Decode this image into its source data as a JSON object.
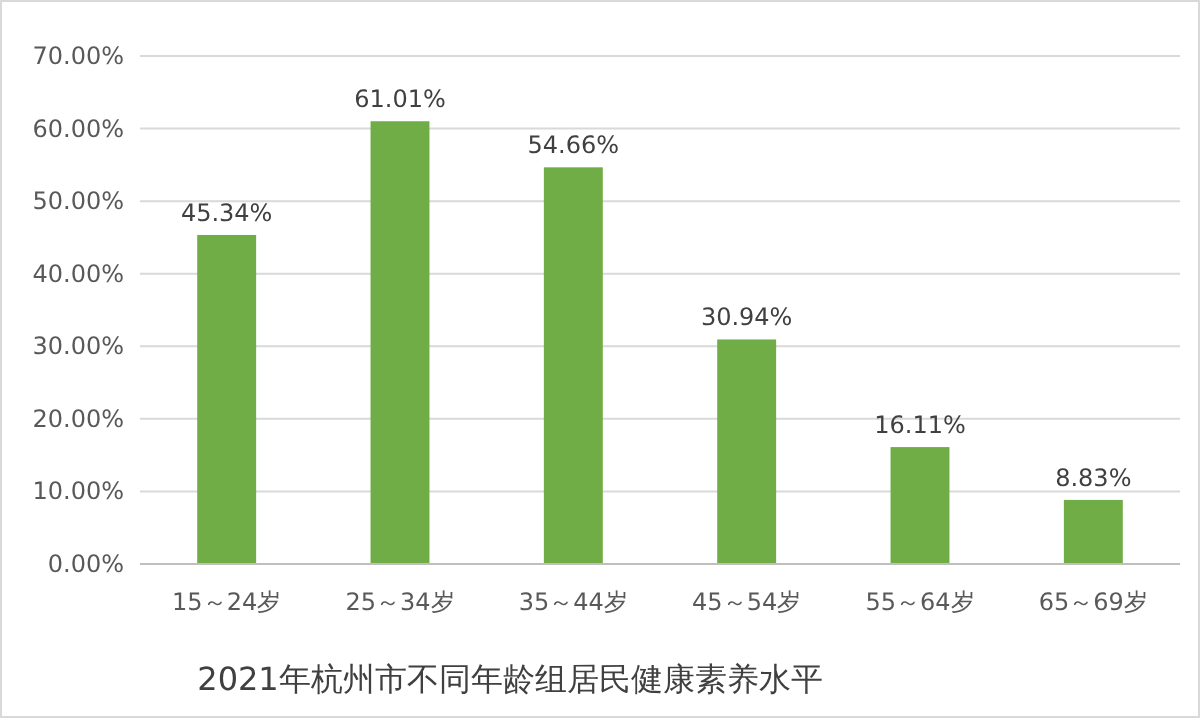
{
  "chart_data": {
    "type": "bar",
    "title": "2021年杭州市不同年龄组居民健康素养水平",
    "categories": [
      "15～24岁",
      "25～34岁",
      "35～44岁",
      "45～54岁",
      "55～64岁",
      "65～69岁"
    ],
    "values": [
      45.34,
      61.01,
      54.66,
      30.94,
      16.11,
      8.83
    ],
    "value_labels": [
      "45.34%",
      "61.01%",
      "54.66%",
      "30.94%",
      "16.11%",
      "8.83%"
    ],
    "color": "#70ad47",
    "ylim": [
      0,
      70
    ],
    "yticks": [
      {
        "value": 0,
        "label": "0.00%"
      },
      {
        "value": 10,
        "label": "10.00%"
      },
      {
        "value": 20,
        "label": "20.00%"
      },
      {
        "value": 30,
        "label": "30.00%"
      },
      {
        "value": 40,
        "label": "40.00%"
      },
      {
        "value": 50,
        "label": "50.00%"
      },
      {
        "value": 60,
        "label": "60.00%"
      },
      {
        "value": 70,
        "label": "70.00%"
      }
    ],
    "grid": "y"
  }
}
